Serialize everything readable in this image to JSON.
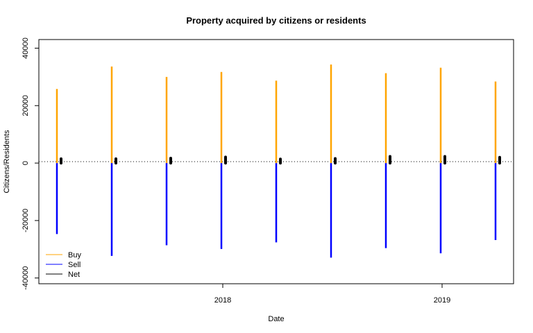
{
  "chart_data": {
    "type": "bar",
    "title": "Property acquired by citizens or residents",
    "xlabel": "Date",
    "ylabel": "Citizens/Residents",
    "x_ticks": [
      "2018",
      "2019"
    ],
    "y_ticks": [
      "-40000",
      "-20000",
      "0",
      "20000",
      "40000"
    ],
    "ylim": [
      -42000,
      43000
    ],
    "zero_line": "dotted",
    "grid": false,
    "legend_position": "bottom-left",
    "categories": [
      "2017-Q2",
      "2017-Q3",
      "2017-Q4",
      "2018-Q1",
      "2018-Q2",
      "2018-Q3",
      "2018-Q4",
      "2019-Q1",
      "2019-Q2"
    ],
    "series": [
      {
        "name": "Buy",
        "color": "#FFA500",
        "values": [
          25800,
          33600,
          30000,
          31700,
          28700,
          34300,
          31300,
          33200,
          28400
        ]
      },
      {
        "name": "Sell",
        "color": "#0000FF",
        "values": [
          -24700,
          -32300,
          -28600,
          -29900,
          -27600,
          -32900,
          -29600,
          -31400,
          -26800
        ]
      },
      {
        "name": "Net",
        "color": "#000000",
        "values": [
          1500,
          1500,
          1700,
          2100,
          1400,
          1600,
          2300,
          2300,
          2000
        ]
      }
    ]
  }
}
